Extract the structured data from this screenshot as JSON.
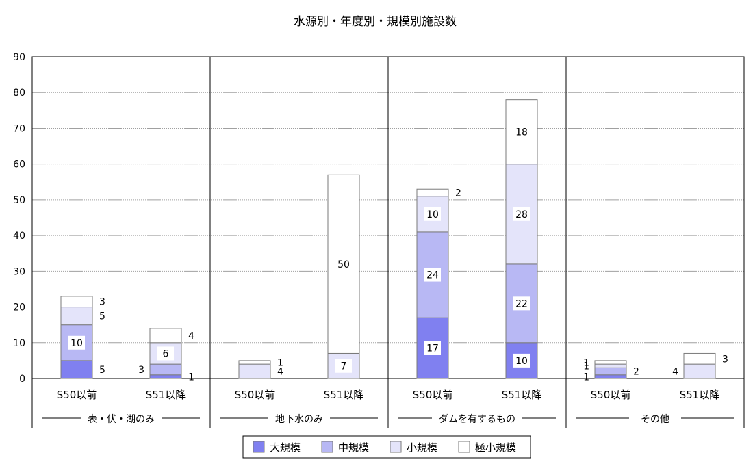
{
  "chart_data": {
    "type": "bar",
    "stacked": true,
    "title": "水源別・年度別・規模別施設数",
    "ylim": [
      0,
      90
    ],
    "yticks": [
      0,
      10,
      20,
      30,
      40,
      50,
      60,
      70,
      80,
      90
    ],
    "grid": true,
    "legend_position": "bottom",
    "groups": [
      {
        "label": "表・伏・湖のみ",
        "categories": [
          "S50以前",
          "S51以降"
        ]
      },
      {
        "label": "地下水のみ",
        "categories": [
          "S50以前",
          "S51以降"
        ]
      },
      {
        "label": "ダムを有するもの",
        "categories": [
          "S50以前",
          "S51以降"
        ]
      },
      {
        "label": "その他",
        "categories": [
          "S50以前",
          "S51以降"
        ]
      }
    ],
    "series": [
      {
        "name": "大規模",
        "color": "#8080f0",
        "values": [
          5,
          1,
          0,
          0,
          17,
          10,
          1,
          0
        ]
      },
      {
        "name": "中規模",
        "color": "#b8b8f4",
        "values": [
          10,
          3,
          0,
          0,
          24,
          22,
          2,
          0
        ]
      },
      {
        "name": "小規模",
        "color": "#e4e4fa",
        "values": [
          5,
          6,
          4,
          7,
          10,
          28,
          1,
          4
        ]
      },
      {
        "name": "極小規模",
        "color": "#ffffff",
        "values": [
          3,
          4,
          1,
          50,
          2,
          18,
          1,
          3
        ]
      }
    ]
  }
}
